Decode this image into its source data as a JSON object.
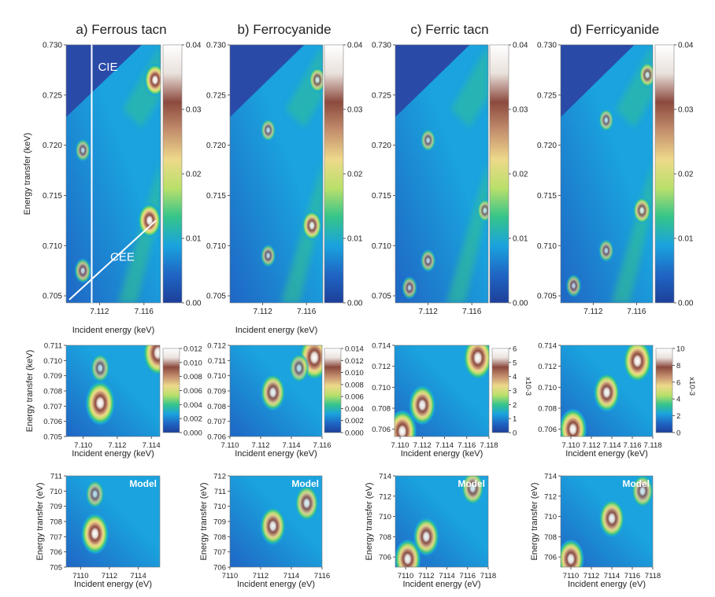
{
  "colors": {
    "c0": "#1d3f9a",
    "c1": "#1f66c4",
    "c2": "#1aa3de",
    "c3": "#35c48a",
    "c4": "#b9e06a",
    "c5": "#eed98a",
    "c6": "#c48f6e",
    "c7": "#8c4a3e",
    "c8": "#e9e1dc",
    "c9": "#ffffff"
  },
  "chart_data": [
    {
      "id": "a1",
      "type": "heatmap",
      "panel_label": "a) Ferrous tacn",
      "xlabel": "Incident energy (keV)",
      "ylabel": "Energy transfer (keV)",
      "xlim": [
        7.109,
        7.1175
      ],
      "ylim": [
        0.7043,
        0.73
      ],
      "xticks": [
        7.112,
        7.116
      ],
      "yticks": [
        0.705,
        0.71,
        0.715,
        0.72,
        0.725,
        0.73
      ],
      "colorbar": {
        "min": 0,
        "max": 0.04,
        "ticks": [
          "0.00",
          "0.01",
          "0.02",
          "0.03",
          "0.04"
        ]
      },
      "annotations": [
        "CIE",
        "CEE"
      ],
      "features": [
        {
          "x": 7.1105,
          "y": 0.7075,
          "v": 0.018
        },
        {
          "x": 7.1105,
          "y": 0.7195,
          "v": 0.012
        },
        {
          "x": 7.1165,
          "y": 0.7125,
          "v": 0.045
        },
        {
          "x": 7.117,
          "y": 0.7265,
          "v": 0.04
        }
      ]
    },
    {
      "id": "b1",
      "type": "heatmap",
      "panel_label": "b) Ferrocyanide",
      "xlabel": "Incident energy (keV)",
      "ylabel": "",
      "xlim": [
        7.109,
        7.1175
      ],
      "ylim": [
        0.7043,
        0.73
      ],
      "xticks": [
        7.112,
        7.116
      ],
      "yticks": [
        0.705,
        0.71,
        0.715,
        0.72,
        0.725,
        0.73
      ],
      "colorbar": {
        "min": 0,
        "max": 0.04,
        "ticks": [
          "0.00",
          "0.01",
          "0.02",
          "0.03",
          "0.04"
        ]
      },
      "features": [
        {
          "x": 7.1125,
          "y": 0.709,
          "v": 0.012
        },
        {
          "x": 7.1125,
          "y": 0.7215,
          "v": 0.01
        },
        {
          "x": 7.1165,
          "y": 0.712,
          "v": 0.032
        },
        {
          "x": 7.117,
          "y": 0.7265,
          "v": 0.02
        }
      ]
    },
    {
      "id": "c1",
      "type": "heatmap",
      "panel_label": "c) Ferric tacn",
      "xlabel": "",
      "ylabel": "",
      "xlim": [
        7.109,
        7.1175
      ],
      "ylim": [
        0.7043,
        0.73
      ],
      "xticks": [
        7.112,
        7.116
      ],
      "yticks": [
        0.705,
        0.71,
        0.715,
        0.72,
        0.725,
        0.73
      ],
      "colorbar": {
        "min": 0,
        "max": 0.04,
        "ticks": [
          "0.00",
          "0.01",
          "0.02",
          "0.03",
          "0.04"
        ]
      },
      "features": [
        {
          "x": 7.1103,
          "y": 0.7058,
          "v": 0.01
        },
        {
          "x": 7.112,
          "y": 0.7085,
          "v": 0.008
        },
        {
          "x": 7.112,
          "y": 0.7205,
          "v": 0.009
        },
        {
          "x": 7.1172,
          "y": 0.7135,
          "v": 0.014
        }
      ]
    },
    {
      "id": "d1",
      "type": "heatmap",
      "panel_label": "d) Ferricyanide",
      "xlabel": "",
      "ylabel": "",
      "xlim": [
        7.109,
        7.1175
      ],
      "ylim": [
        0.7043,
        0.73
      ],
      "xticks": [
        7.112,
        7.116
      ],
      "yticks": [
        0.705,
        0.71,
        0.715,
        0.72,
        0.725,
        0.73
      ],
      "colorbar": {
        "min": 0,
        "max": 0.04,
        "ticks": [
          "0.00",
          "0.01",
          "0.02",
          "0.03",
          "0.04"
        ]
      },
      "features": [
        {
          "x": 7.1102,
          "y": 0.706,
          "v": 0.012
        },
        {
          "x": 7.1132,
          "y": 0.7095,
          "v": 0.011
        },
        {
          "x": 7.1132,
          "y": 0.7225,
          "v": 0.01
        },
        {
          "x": 7.1165,
          "y": 0.7135,
          "v": 0.024
        },
        {
          "x": 7.117,
          "y": 0.727,
          "v": 0.02
        }
      ]
    },
    {
      "id": "a2",
      "type": "heatmap",
      "panel_label": "",
      "xlabel": "Incident energy (keV)",
      "ylabel": "Energy transfer (keV)",
      "xlim": [
        7.109,
        7.1145
      ],
      "ylim": [
        0.705,
        0.711
      ],
      "xticks": [
        "7.110",
        "7.112",
        "7.114"
      ],
      "yticks": [
        "0.705",
        "0.706",
        "0.707",
        "0.708",
        "0.709",
        "0.710",
        "0.711"
      ],
      "colorbar": {
        "min": 0,
        "max": 0.012,
        "ticks": [
          "0.000",
          "0.002",
          "0.004",
          "0.006",
          "0.008",
          "0.010",
          "0.012"
        ]
      },
      "features": [
        {
          "x": 7.111,
          "y": 0.7072,
          "v": 0.014
        },
        {
          "x": 7.111,
          "y": 0.7095,
          "v": 0.004
        },
        {
          "x": 7.1144,
          "y": 0.7105,
          "v": 0.015
        }
      ]
    },
    {
      "id": "b2",
      "type": "heatmap",
      "panel_label": "",
      "xlabel": "Incident energy (keV)",
      "ylabel": "",
      "xlim": [
        7.11,
        7.116
      ],
      "ylim": [
        0.706,
        0.712
      ],
      "xticks": [
        "7.110",
        "7.112",
        "7.114",
        "7.116"
      ],
      "yticks": [
        "0.706",
        "0.707",
        "0.708",
        "0.709",
        "0.710",
        "0.711",
        "0.712"
      ],
      "colorbar": {
        "min": 0,
        "max": 0.014,
        "ticks": [
          "0.000",
          "0.002",
          "0.004",
          "0.006",
          "0.008",
          "0.010",
          "0.012",
          "0.014"
        ]
      },
      "features": [
        {
          "x": 7.1128,
          "y": 0.7089,
          "v": 0.011
        },
        {
          "x": 7.1155,
          "y": 0.7112,
          "v": 0.02
        },
        {
          "x": 7.1145,
          "y": 0.7105,
          "v": 0.005
        }
      ]
    },
    {
      "id": "c2",
      "type": "heatmap",
      "panel_label": "",
      "xlabel": "Incident energy (keV)",
      "ylabel": "",
      "xlim": [
        7.1095,
        7.118
      ],
      "ylim": [
        0.7053,
        0.714
      ],
      "xticks": [
        "7.110",
        "7.112",
        "7.114",
        "7.116",
        "7.118"
      ],
      "yticks": [
        "0.706",
        "0.708",
        "0.710",
        "0.712",
        "0.714"
      ],
      "colorbar": {
        "min": 0,
        "max": 6,
        "ticks": [
          "0",
          "1",
          "2",
          "3",
          "4",
          "5",
          "6"
        ],
        "unit": "x10-3"
      },
      "features": [
        {
          "x": 7.1102,
          "y": 0.7058,
          "v": 6.5
        },
        {
          "x": 7.112,
          "y": 0.7083,
          "v": 5.5
        },
        {
          "x": 7.117,
          "y": 0.7128,
          "v": 7
        }
      ]
    },
    {
      "id": "d2",
      "type": "heatmap",
      "panel_label": "",
      "xlabel": "Incident energy (keV)",
      "ylabel": "",
      "xlim": [
        7.109,
        7.118
      ],
      "ylim": [
        0.7053,
        0.714
      ],
      "xticks": [
        "7.110",
        "7.112",
        "7.114",
        "7.116",
        "7.118"
      ],
      "yticks": [
        "0.706",
        "0.708",
        "0.710",
        "0.712",
        "0.714"
      ],
      "colorbar": {
        "min": 0,
        "max": 10,
        "ticks": [
          "0",
          "2",
          "4",
          "6",
          "8",
          "10"
        ],
        "unit": "x10-3"
      },
      "features": [
        {
          "x": 7.1102,
          "y": 0.706,
          "v": 10
        },
        {
          "x": 7.1135,
          "y": 0.7095,
          "v": 9
        },
        {
          "x": 7.1165,
          "y": 0.7125,
          "v": 11
        }
      ]
    },
    {
      "id": "a3",
      "type": "heatmap",
      "panel_label": "",
      "model_label": "Model",
      "xlabel": "Incident energy (eV)",
      "ylabel": "Energy transfer (eV)",
      "xlim": [
        7109,
        7115.5
      ],
      "ylim": [
        705,
        711
      ],
      "xticks": [
        "7110",
        "7112",
        "7114"
      ],
      "yticks": [
        "705",
        "706",
        "707",
        "708",
        "709",
        "710",
        "711"
      ],
      "features": [
        {
          "x": 7111,
          "y": 707.2,
          "v": 1.0
        },
        {
          "x": 7111,
          "y": 709.8,
          "v": 0.3
        }
      ]
    },
    {
      "id": "b3",
      "type": "heatmap",
      "panel_label": "",
      "model_label": "Model",
      "xlabel": "Incident energy (eV)",
      "ylabel": "Energy transfer (eV)",
      "xlim": [
        7110,
        7116
      ],
      "ylim": [
        706,
        712
      ],
      "xticks": [
        "7110",
        "7112",
        "7114",
        "7116"
      ],
      "yticks": [
        "706",
        "707",
        "708",
        "709",
        "710",
        "711",
        "712"
      ],
      "features": [
        {
          "x": 7112.8,
          "y": 708.7,
          "v": 0.85
        },
        {
          "x": 7115,
          "y": 710.2,
          "v": 0.7
        }
      ]
    },
    {
      "id": "c3",
      "type": "heatmap",
      "panel_label": "",
      "model_label": "Model",
      "xlabel": "Incident energy (eV)",
      "ylabel": "Energy transfer (eV)",
      "xlim": [
        7109,
        7118
      ],
      "ylim": [
        705,
        714
      ],
      "xticks": [
        "7110",
        "7112",
        "7114",
        "7116",
        "7118"
      ],
      "yticks": [
        "706",
        "708",
        "710",
        "712",
        "714"
      ],
      "features": [
        {
          "x": 7110.2,
          "y": 705.8,
          "v": 0.9
        },
        {
          "x": 7112,
          "y": 708,
          "v": 0.85
        },
        {
          "x": 7116.5,
          "y": 712.8,
          "v": 0.6
        }
      ]
    },
    {
      "id": "d3",
      "type": "heatmap",
      "panel_label": "",
      "model_label": "Model",
      "xlabel": "Incident energy (eV)",
      "ylabel": "Energy transfer (eV)",
      "xlim": [
        7109,
        7118
      ],
      "ylim": [
        705,
        714
      ],
      "xticks": [
        "7110",
        "7112",
        "7114",
        "7116",
        "7118"
      ],
      "yticks": [
        "706",
        "708",
        "710",
        "712",
        "714"
      ],
      "features": [
        {
          "x": 7110,
          "y": 705.8,
          "v": 0.9
        },
        {
          "x": 7114,
          "y": 709.8,
          "v": 0.85
        },
        {
          "x": 7117,
          "y": 712.5,
          "v": 0.55
        }
      ]
    }
  ]
}
